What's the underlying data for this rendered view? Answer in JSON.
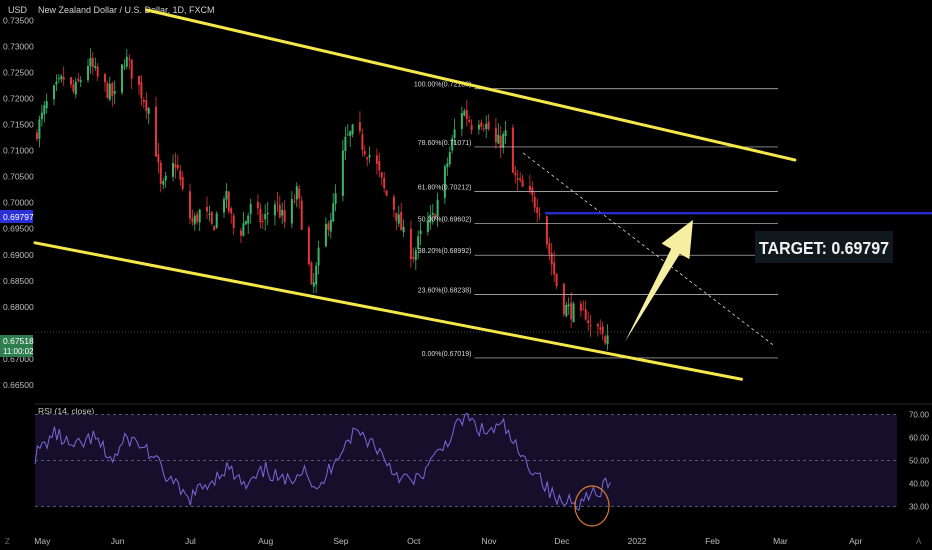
{
  "header": {
    "currency": "USD",
    "symbol_title": "New Zealand Dollar / U.S. Dollar, 1D, FXCM"
  },
  "colors": {
    "background": "#000000",
    "up_candle": "#3bb46a",
    "down_candle": "#e2353b",
    "channel": "#f5e64a",
    "target_line": "#2b2fd8",
    "arrow": "#f6eea1",
    "rsi_line": "#7b68d9",
    "rsi_band": "#160f2b",
    "circle": "#e07a2a",
    "last_price_bg": "#2e7d4f"
  },
  "price_axis": {
    "ticks": [
      "0.73500",
      "0.73000",
      "0.72500",
      "0.72000",
      "0.71500",
      "0.71000",
      "0.70500",
      "0.70000",
      "0.69500",
      "0.69000",
      "0.68500",
      "0.68000",
      "0.67000",
      "0.66500"
    ],
    "target_label": "0.69797",
    "last_price": "0.67518",
    "countdown": "11:00:02"
  },
  "rsi_axis": {
    "title": "RSI (14, close)",
    "ticks": [
      "70.00",
      "60.00",
      "50.00",
      "40.00",
      "30.00"
    ]
  },
  "time_axis": {
    "ticks": [
      "May",
      "Jun",
      "Jul",
      "Aug",
      "Sep",
      "Oct",
      "Nov",
      "Dec",
      "2022",
      "Feb",
      "Mar",
      "Apr"
    ]
  },
  "annotations": {
    "target_text": "TARGET: 0.69797",
    "fib_levels": [
      {
        "pct": "100.00%",
        "price": "0.72188",
        "label": "100.00%(0.72188)"
      },
      {
        "pct": "78.60%",
        "price": "0.71071",
        "label": "78.60%(0.71071)"
      },
      {
        "pct": "61.80%",
        "price": "0.70212",
        "label": "61.80%(0.70212)"
      },
      {
        "pct": "50.00%",
        "price": "0.69602",
        "label": "50.00%(0.69602)"
      },
      {
        "pct": "38.20%",
        "price": "0.68992",
        "label": "38.20%(0.68992)"
      },
      {
        "pct": "23.60%",
        "price": "0.68238",
        "label": "23.60%(0.68238)"
      },
      {
        "pct": "0.00%",
        "price": "0.67019",
        "label": "0.00%(0.67019)"
      }
    ]
  },
  "footer": {
    "z_button": "Z",
    "a_button": "A"
  },
  "chart_data": {
    "type": "candlestick",
    "title": "New Zealand Dollar / U.S. Dollar, 1D, FXCM",
    "ylim": [
      0.6625,
      0.737
    ],
    "close_path": [
      {
        "x": "2021-04-28",
        "y": 0.713
      },
      {
        "x": "2021-05-03",
        "y": 0.719
      },
      {
        "x": "2021-05-10",
        "y": 0.724
      },
      {
        "x": "2021-05-14",
        "y": 0.721
      },
      {
        "x": "2021-05-20",
        "y": 0.727
      },
      {
        "x": "2021-05-25",
        "y": 0.723
      },
      {
        "x": "2021-05-31",
        "y": 0.72
      },
      {
        "x": "2021-06-04",
        "y": 0.728
      },
      {
        "x": "2021-06-10",
        "y": 0.722
      },
      {
        "x": "2021-06-15",
        "y": 0.717
      },
      {
        "x": "2021-06-19",
        "y": 0.702
      },
      {
        "x": "2021-06-25",
        "y": 0.708
      },
      {
        "x": "2021-06-29",
        "y": 0.699
      },
      {
        "x": "2021-07-02",
        "y": 0.696
      },
      {
        "x": "2021-07-06",
        "y": 0.699
      },
      {
        "x": "2021-07-10",
        "y": 0.695
      },
      {
        "x": "2021-07-15",
        "y": 0.702
      },
      {
        "x": "2021-07-20",
        "y": 0.693
      },
      {
        "x": "2021-07-26",
        "y": 0.699
      },
      {
        "x": "2021-07-31",
        "y": 0.696
      },
      {
        "x": "2021-08-04",
        "y": 0.701
      },
      {
        "x": "2021-08-09",
        "y": 0.696
      },
      {
        "x": "2021-08-14",
        "y": 0.702
      },
      {
        "x": "2021-08-19",
        "y": 0.687
      },
      {
        "x": "2021-08-20",
        "y": 0.682
      },
      {
        "x": "2021-08-24",
        "y": 0.693
      },
      {
        "x": "2021-08-29",
        "y": 0.699
      },
      {
        "x": "2021-09-03",
        "y": 0.712
      },
      {
        "x": "2021-09-07",
        "y": 0.714
      },
      {
        "x": "2021-09-10",
        "y": 0.711
      },
      {
        "x": "2021-09-15",
        "y": 0.708
      },
      {
        "x": "2021-09-19",
        "y": 0.702
      },
      {
        "x": "2021-09-23",
        "y": 0.699
      },
      {
        "x": "2021-09-28",
        "y": 0.692
      },
      {
        "x": "2021-10-01",
        "y": 0.69
      },
      {
        "x": "2021-10-05",
        "y": 0.695
      },
      {
        "x": "2021-10-09",
        "y": 0.697
      },
      {
        "x": "2021-10-14",
        "y": 0.706
      },
      {
        "x": "2021-10-19",
        "y": 0.716
      },
      {
        "x": "2021-10-21",
        "y": 0.718
      },
      {
        "x": "2021-10-25",
        "y": 0.715
      },
      {
        "x": "2021-10-28",
        "y": 0.7165
      },
      {
        "x": "2021-11-01",
        "y": 0.714
      },
      {
        "x": "2021-11-04",
        "y": 0.711
      },
      {
        "x": "2021-11-08",
        "y": 0.713
      },
      {
        "x": "2021-11-11",
        "y": 0.705
      },
      {
        "x": "2021-11-14",
        "y": 0.703
      },
      {
        "x": "2021-11-18",
        "y": 0.701
      },
      {
        "x": "2021-11-22",
        "y": 0.699
      },
      {
        "x": "2021-11-26",
        "y": 0.69
      },
      {
        "x": "2021-11-29",
        "y": 0.684
      },
      {
        "x": "2021-12-02",
        "y": 0.68
      },
      {
        "x": "2021-12-06",
        "y": 0.679
      },
      {
        "x": "2021-12-08",
        "y": 0.677
      },
      {
        "x": "2021-12-11",
        "y": 0.679
      },
      {
        "x": "2021-12-14",
        "y": 0.674
      },
      {
        "x": "2021-12-17",
        "y": 0.677
      },
      {
        "x": "2021-12-19",
        "y": 0.672
      },
      {
        "x": "2021-12-21",
        "y": 0.6752
      }
    ],
    "channel_upper": [
      {
        "x": "2021-06-13",
        "y": 0.737
      },
      {
        "x": "2022-03-07",
        "y": 0.7082
      }
    ],
    "channel_lower": [
      {
        "x": "2021-04-28",
        "y": 0.6923
      },
      {
        "x": "2022-02-13",
        "y": 0.6661
      }
    ],
    "fib_trend": [
      {
        "x": "2021-11-15",
        "y": 0.70955
      },
      {
        "x": "2022-02-26",
        "y": 0.6727
      }
    ],
    "target_line": {
      "price": 0.69797,
      "x_start": "2021-11-24",
      "x_end": "2022-05-06"
    },
    "fib_x_range": [
      "2021-10-26",
      "2022-02-28"
    ],
    "arrow": {
      "from": {
        "x": "2021-12-27",
        "y": 0.6733
      },
      "to": {
        "x": "2022-01-24",
        "y": 0.6967
      }
    },
    "last_price_line": 0.67518,
    "rsi": {
      "ylim": [
        25,
        75
      ],
      "values": [
        {
          "x": "2021-04-28",
          "y": 52
        },
        {
          "x": "2021-05-06",
          "y": 62
        },
        {
          "x": "2021-05-14",
          "y": 55
        },
        {
          "x": "2021-05-22",
          "y": 60
        },
        {
          "x": "2021-05-30",
          "y": 50
        },
        {
          "x": "2021-06-05",
          "y": 60
        },
        {
          "x": "2021-06-13",
          "y": 55
        },
        {
          "x": "2021-06-22",
          "y": 42
        },
        {
          "x": "2021-06-30",
          "y": 33
        },
        {
          "x": "2021-07-08",
          "y": 40
        },
        {
          "x": "2021-07-16",
          "y": 47
        },
        {
          "x": "2021-07-24",
          "y": 38
        },
        {
          "x": "2021-08-01",
          "y": 46
        },
        {
          "x": "2021-08-09",
          "y": 40
        },
        {
          "x": "2021-08-17",
          "y": 48
        },
        {
          "x": "2021-08-22",
          "y": 35
        },
        {
          "x": "2021-08-30",
          "y": 52
        },
        {
          "x": "2021-09-07",
          "y": 63
        },
        {
          "x": "2021-09-15",
          "y": 57
        },
        {
          "x": "2021-09-23",
          "y": 45
        },
        {
          "x": "2021-10-01",
          "y": 40
        },
        {
          "x": "2021-10-09",
          "y": 50
        },
        {
          "x": "2021-10-17",
          "y": 62
        },
        {
          "x": "2021-10-22",
          "y": 69
        },
        {
          "x": "2021-10-30",
          "y": 62
        },
        {
          "x": "2021-11-07",
          "y": 65
        },
        {
          "x": "2021-11-15",
          "y": 50
        },
        {
          "x": "2021-11-21",
          "y": 45
        },
        {
          "x": "2021-11-26",
          "y": 36
        },
        {
          "x": "2021-12-01",
          "y": 31
        },
        {
          "x": "2021-12-05",
          "y": 34
        },
        {
          "x": "2021-12-09",
          "y": 31
        },
        {
          "x": "2021-12-13",
          "y": 38
        },
        {
          "x": "2021-12-16",
          "y": 33
        },
        {
          "x": "2021-12-19",
          "y": 40
        },
        {
          "x": "2021-12-21",
          "y": 39
        }
      ],
      "levels": [
        70,
        50,
        30
      ]
    }
  }
}
